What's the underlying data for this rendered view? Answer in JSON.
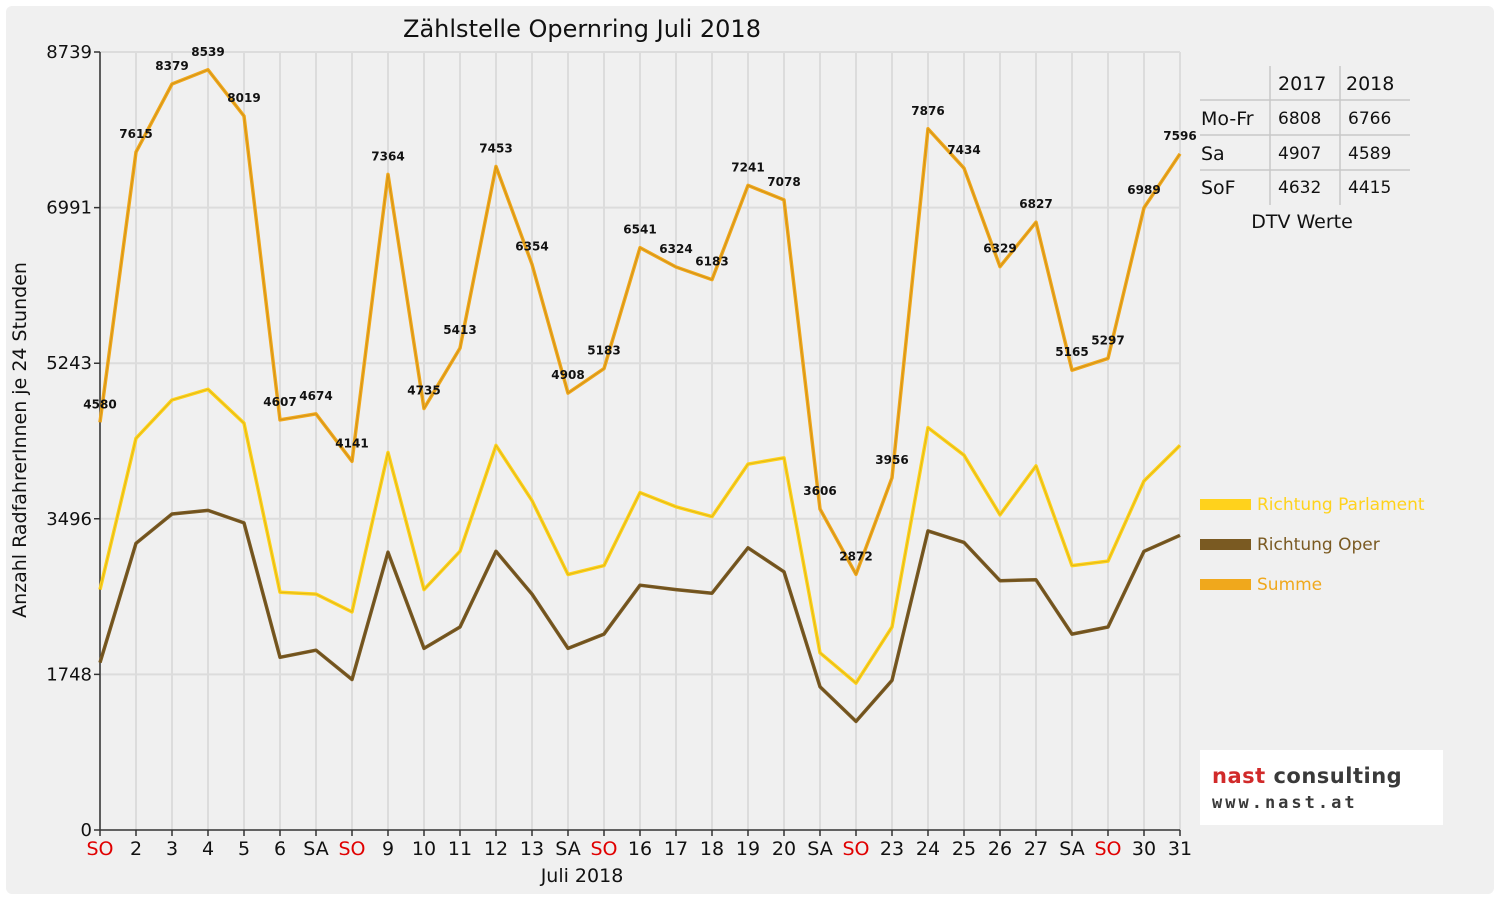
{
  "chart_data": {
    "type": "line",
    "title": "Zählstelle Opernring Juli 2018",
    "xlabel": "Juli 2018",
    "ylabel": "Anzahl RadfahrerInnen je 24 Stunden",
    "ylim": [
      0,
      8739
    ],
    "yticks": [
      0,
      1748,
      3496,
      5243,
      6991,
      8739
    ],
    "grid": true,
    "legend_position": "right",
    "categories": [
      "SO",
      "2",
      "3",
      "4",
      "5",
      "6",
      "SA",
      "SO",
      "9",
      "10",
      "11",
      "12",
      "13",
      "SA",
      "SO",
      "16",
      "17",
      "18",
      "19",
      "20",
      "SA",
      "SO",
      "23",
      "24",
      "25",
      "26",
      "27",
      "SA",
      "SO",
      "30",
      "31"
    ],
    "weekend_tick_color": "#e00000",
    "series": [
      {
        "name": "Richtung Parlament",
        "color": "#ffd21c",
        "values": [
          2700,
          4400,
          4830,
          4950,
          4570,
          2670,
          2650,
          2450,
          4240,
          2700,
          3130,
          4320,
          3700,
          2870,
          2970,
          3790,
          3630,
          3520,
          4110,
          4180,
          1990,
          1650,
          2280,
          4520,
          4210,
          3540,
          4090,
          2970,
          3020,
          3920,
          4320
        ]
      },
      {
        "name": "Richtung Oper",
        "color": "#7a5a22",
        "values": [
          1880,
          3220,
          3550,
          3590,
          3450,
          1940,
          2020,
          1690,
          3120,
          2040,
          2280,
          3130,
          2650,
          2040,
          2200,
          2750,
          2700,
          2660,
          3170,
          2900,
          1610,
          1220,
          1680,
          3360,
          3230,
          2800,
          2810,
          2200,
          2280,
          3130,
          3310
        ]
      },
      {
        "name": "Summe",
        "color": "#f0a81c",
        "values": [
          4580,
          7615,
          8379,
          8539,
          8019,
          4607,
          4674,
          4141,
          7364,
          4735,
          5413,
          7453,
          6354,
          4908,
          5183,
          6541,
          6324,
          6183,
          7241,
          7078,
          3606,
          2872,
          3956,
          7876,
          7434,
          6329,
          6827,
          5165,
          5297,
          6989,
          7596
        ]
      }
    ]
  },
  "dtv_table": {
    "headers": [
      "",
      "2017",
      "2018"
    ],
    "rows": [
      {
        "label": "Mo-Fr",
        "v2017": "6808",
        "v2018": "6766"
      },
      {
        "label": "Sa",
        "v2017": "4907",
        "v2018": "4589"
      },
      {
        "label": "SoF",
        "v2017": "4632",
        "v2018": "4415"
      }
    ],
    "caption": "DTV Werte"
  },
  "logo": {
    "name_part1": "nast",
    "name_part2": " consulting",
    "url": "www.nast.at"
  }
}
